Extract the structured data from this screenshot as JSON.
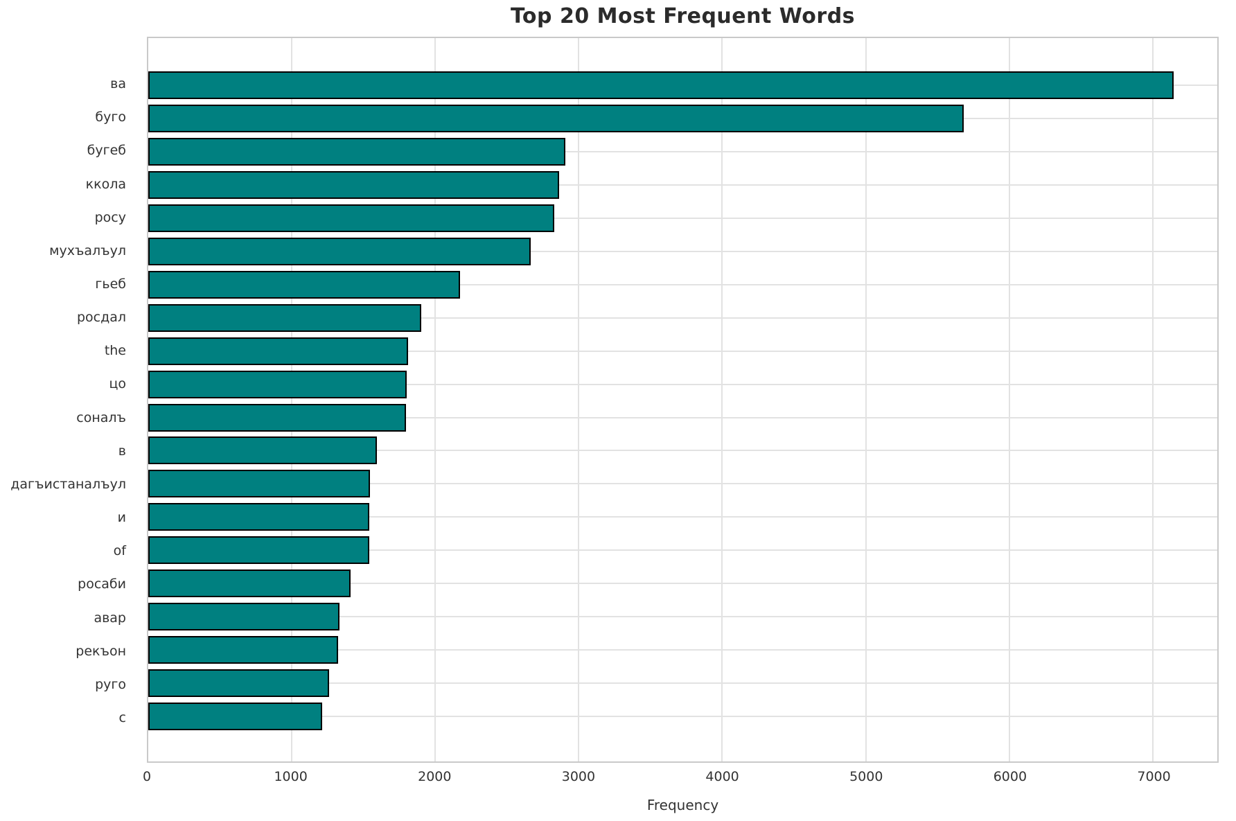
{
  "title": "Top 20 Most Frequent Words",
  "chart_data": {
    "type": "bar",
    "orientation": "horizontal",
    "title": "Top 20 Most Frequent Words",
    "xlabel": "Frequency",
    "ylabel": "",
    "categories": [
      "ва",
      "буго",
      "бугеб",
      "ккола",
      "росу",
      "мухъалъул",
      "гьеб",
      "росдал",
      "the",
      "цо",
      "соналъ",
      "в",
      "дагъистаналъул",
      "и",
      "of",
      "росаби",
      "авар",
      "рекъон",
      "руго",
      "с"
    ],
    "values": [
      7145,
      5685,
      2905,
      2865,
      2830,
      2665,
      2175,
      1900,
      1810,
      1800,
      1795,
      1595,
      1545,
      1540,
      1538,
      1410,
      1335,
      1325,
      1260,
      1212
    ],
    "xticks": [
      0,
      1000,
      2000,
      3000,
      4000,
      5000,
      6000,
      7000
    ],
    "xlim": [
      0,
      7450
    ],
    "grid": true,
    "legend": false,
    "bar_color": "#008080",
    "bar_edge_color": "#000000",
    "grid_color": "#e2e2e2"
  }
}
